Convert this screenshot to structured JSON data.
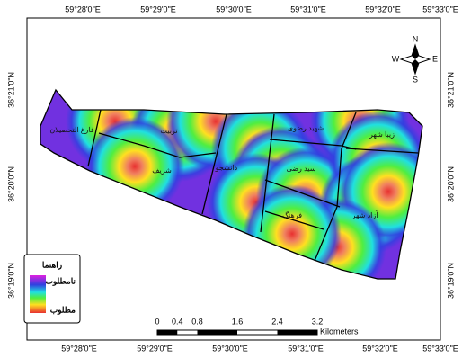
{
  "frame": {
    "top_labels": [
      "59°28'0\"E",
      "59°29'0\"E",
      "59°30'0\"E",
      "59°31'0\"E",
      "59°32'0\"E",
      "59°33'0\"E"
    ],
    "bottom_labels": [
      "59°28'0\"E",
      "59°29'0\"E",
      "59°30'0\"E",
      "59°31'0\"E",
      "59°32'0\"E",
      "59°33'0\"E"
    ],
    "left_labels": [
      "36°21'0\"N",
      "36°20'0\"N",
      "36°19'0\"N"
    ],
    "right_labels": [
      "36°21'0\"N",
      "36°20'0\"N",
      "36°19'0\"N"
    ]
  },
  "compass": {
    "north": "N",
    "east": "E",
    "south": "S",
    "west": "W"
  },
  "districts": [
    "فارغ التحصیلان",
    "تربیت",
    "شریف",
    "دانشجو",
    "شهید رضوی",
    "زیبا شهر",
    "سید رضی",
    "فرهنگ",
    "آزاد شهر"
  ],
  "legend": {
    "title": "راهنما",
    "high": "نامطلوب",
    "low": "مطلوب"
  },
  "scale_bar": {
    "ticks": [
      0,
      0.4,
      0.8,
      1.6,
      2.4,
      3.2
    ],
    "unit": "Kilometers"
  }
}
